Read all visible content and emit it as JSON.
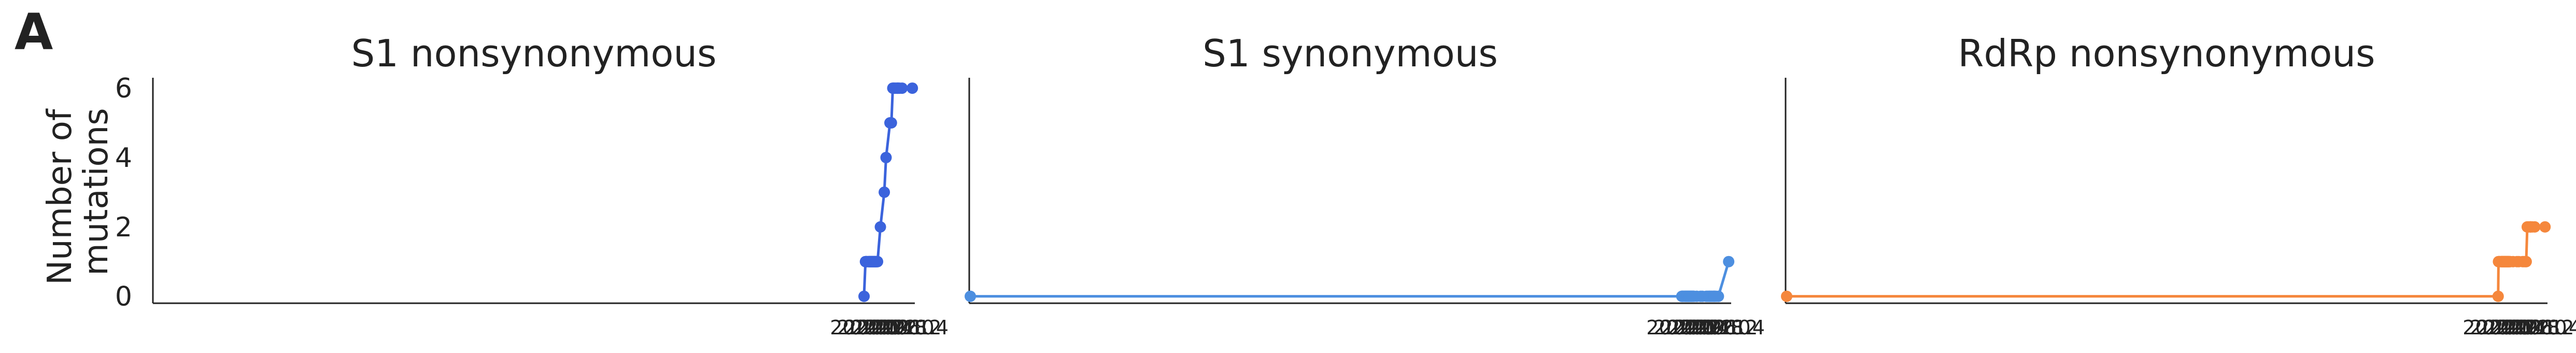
{
  "panel_label": "A",
  "ylabel_lines": [
    "Number of",
    "mutations"
  ],
  "chart_data": [
    {
      "type": "line",
      "title": "S1 nonsynonymous",
      "color": "#3b63dc",
      "xlabel": "",
      "ylabel": "Number of mutations",
      "xlim": [
        1999.96,
        2021.42
      ],
      "ylim": [
        -0.2,
        6.3
      ],
      "xticks": [
        2020.0,
        2020.2,
        2020.4,
        2020.6,
        2020.8,
        2021.0,
        2021.2,
        2021.4
      ],
      "xtick_labels": [
        "2020.0",
        "2020.2",
        "2020.4",
        "2020.6",
        "2020.8",
        "2021.0",
        "2021.2",
        "2021.4"
      ],
      "yticks": [
        0,
        2,
        4,
        6
      ],
      "ytick_labels": [
        "0",
        "2",
        "4",
        "6"
      ],
      "grid": false,
      "x": [
        2019.99,
        2020.03,
        2020.04,
        2020.05,
        2020.06,
        2020.07,
        2020.1,
        2020.12,
        2020.13,
        2020.14,
        2020.15,
        2020.16,
        2020.17,
        2020.18,
        2020.19,
        2020.2,
        2020.21,
        2020.22,
        2020.23,
        2020.24,
        2020.25,
        2020.26,
        2020.27,
        2020.28,
        2020.29,
        2020.3,
        2020.31,
        2020.32,
        2020.33,
        2020.34,
        2020.36,
        2020.37,
        2020.45,
        2020.56,
        2020.61,
        2020.72,
        2020.76,
        2020.8,
        2020.82,
        2020.85,
        2020.89,
        2020.93,
        2020.94,
        2020.95,
        2020.99,
        2021.06,
        2021.35
      ],
      "y": [
        0,
        1,
        1,
        1,
        1,
        1,
        1,
        1,
        1,
        1,
        1,
        1,
        1,
        1,
        1,
        1,
        1,
        1,
        1,
        1,
        1,
        1,
        1,
        1,
        1,
        1,
        1,
        1,
        1,
        1,
        1,
        1,
        2,
        3,
        4,
        5,
        5,
        6,
        6,
        6,
        6,
        6,
        6,
        6,
        6,
        6,
        6
      ]
    },
    {
      "type": "line",
      "title": "S1 synonymous",
      "color": "#4d8fe0",
      "xlabel": "",
      "ylabel": "",
      "xlim": [
        1999.96,
        2021.42
      ],
      "ylim": [
        -0.2,
        6.3
      ],
      "xticks": [
        2020.0,
        2020.2,
        2020.4,
        2020.6,
        2020.8,
        2021.0,
        2021.2,
        2021.4
      ],
      "xtick_labels": [
        "2020.0",
        "2020.2",
        "2020.4",
        "2020.6",
        "2020.8",
        "2021.0",
        "2021.2",
        "2021.4"
      ],
      "yticks": [],
      "ytick_labels": [],
      "grid": false,
      "x": [
        1999.99,
        2020.03,
        2020.04,
        2020.05,
        2020.06,
        2020.07,
        2020.1,
        2020.12,
        2020.13,
        2020.14,
        2020.15,
        2020.16,
        2020.17,
        2020.18,
        2020.19,
        2020.2,
        2020.21,
        2020.22,
        2020.23,
        2020.24,
        2020.25,
        2020.26,
        2020.27,
        2020.28,
        2020.29,
        2020.3,
        2020.31,
        2020.32,
        2020.33,
        2020.34,
        2020.36,
        2020.37,
        2020.45,
        2020.56,
        2020.61,
        2020.72,
        2020.76,
        2020.8,
        2020.82,
        2020.85,
        2020.89,
        2020.93,
        2020.94,
        2020.95,
        2020.99,
        2021.06,
        2021.35
      ],
      "y": [
        0,
        0,
        0,
        0,
        0,
        0,
        0,
        0,
        0,
        0,
        0,
        0,
        0,
        0,
        0,
        0,
        0,
        0,
        0,
        0,
        0,
        0,
        0,
        0,
        0,
        0,
        0,
        0,
        0,
        0,
        0,
        0,
        0,
        0,
        0,
        0,
        0,
        0,
        0,
        0,
        0,
        0,
        0,
        0,
        0,
        0,
        1
      ]
    },
    {
      "type": "line",
      "title": "RdRp nonsynonymous",
      "color": "#f5873c",
      "xlabel": "",
      "ylabel": "",
      "xlim": [
        1999.96,
        2021.42
      ],
      "ylim": [
        -0.2,
        6.3
      ],
      "xticks": [
        2020.0,
        2020.2,
        2020.4,
        2020.6,
        2020.8,
        2021.0,
        2021.2,
        2021.4
      ],
      "xtick_labels": [
        "2020.0",
        "2020.2",
        "2020.4",
        "2020.6",
        "2020.8",
        "2021.0",
        "2021.2",
        "2021.4"
      ],
      "yticks": [],
      "ytick_labels": [],
      "grid": false,
      "x": [
        1999.99,
        2020.03,
        2020.04,
        2020.05,
        2020.06,
        2020.07,
        2020.1,
        2020.12,
        2020.13,
        2020.14,
        2020.15,
        2020.16,
        2020.17,
        2020.18,
        2020.19,
        2020.2,
        2020.21,
        2020.22,
        2020.23,
        2020.24,
        2020.25,
        2020.26,
        2020.27,
        2020.28,
        2020.29,
        2020.3,
        2020.31,
        2020.32,
        2020.33,
        2020.34,
        2020.36,
        2020.37,
        2020.45,
        2020.56,
        2020.61,
        2020.72,
        2020.76,
        2020.8,
        2020.82,
        2020.85,
        2020.89,
        2020.93,
        2020.94,
        2020.95,
        2020.99,
        2021.06,
        2021.35
      ],
      "y": [
        0,
        0,
        1,
        1,
        1,
        1,
        1,
        1,
        1,
        1,
        1,
        1,
        1,
        1,
        1,
        1,
        1,
        1,
        1,
        1,
        1,
        1,
        1,
        1,
        1,
        1,
        1,
        1,
        1,
        1,
        1,
        1,
        1,
        1,
        1,
        1,
        1,
        1,
        1,
        2,
        2,
        2,
        2,
        2,
        2,
        2,
        2
      ]
    }
  ]
}
